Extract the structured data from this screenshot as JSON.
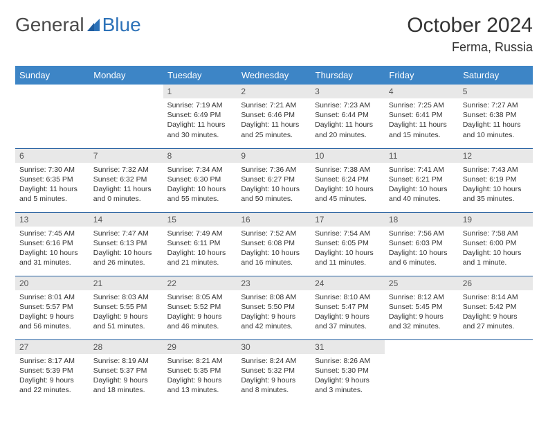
{
  "logo": {
    "part1": "General",
    "part2": "Blue"
  },
  "title": "October 2024",
  "location": "Ferma, Russia",
  "colors": {
    "header_bg": "#3d85c6",
    "header_text": "#ffffff",
    "daynum_bg": "#e8e8e8",
    "row_divider": "#1f5c9e",
    "logo_gray": "#555555",
    "logo_blue": "#2d72b8"
  },
  "weekdays": [
    "Sunday",
    "Monday",
    "Tuesday",
    "Wednesday",
    "Thursday",
    "Friday",
    "Saturday"
  ],
  "weeks": [
    [
      null,
      null,
      {
        "n": "1",
        "sunrise": "Sunrise: 7:19 AM",
        "sunset": "Sunset: 6:49 PM",
        "daylight": "Daylight: 11 hours and 30 minutes."
      },
      {
        "n": "2",
        "sunrise": "Sunrise: 7:21 AM",
        "sunset": "Sunset: 6:46 PM",
        "daylight": "Daylight: 11 hours and 25 minutes."
      },
      {
        "n": "3",
        "sunrise": "Sunrise: 7:23 AM",
        "sunset": "Sunset: 6:44 PM",
        "daylight": "Daylight: 11 hours and 20 minutes."
      },
      {
        "n": "4",
        "sunrise": "Sunrise: 7:25 AM",
        "sunset": "Sunset: 6:41 PM",
        "daylight": "Daylight: 11 hours and 15 minutes."
      },
      {
        "n": "5",
        "sunrise": "Sunrise: 7:27 AM",
        "sunset": "Sunset: 6:38 PM",
        "daylight": "Daylight: 11 hours and 10 minutes."
      }
    ],
    [
      {
        "n": "6",
        "sunrise": "Sunrise: 7:30 AM",
        "sunset": "Sunset: 6:35 PM",
        "daylight": "Daylight: 11 hours and 5 minutes."
      },
      {
        "n": "7",
        "sunrise": "Sunrise: 7:32 AM",
        "sunset": "Sunset: 6:32 PM",
        "daylight": "Daylight: 11 hours and 0 minutes."
      },
      {
        "n": "8",
        "sunrise": "Sunrise: 7:34 AM",
        "sunset": "Sunset: 6:30 PM",
        "daylight": "Daylight: 10 hours and 55 minutes."
      },
      {
        "n": "9",
        "sunrise": "Sunrise: 7:36 AM",
        "sunset": "Sunset: 6:27 PM",
        "daylight": "Daylight: 10 hours and 50 minutes."
      },
      {
        "n": "10",
        "sunrise": "Sunrise: 7:38 AM",
        "sunset": "Sunset: 6:24 PM",
        "daylight": "Daylight: 10 hours and 45 minutes."
      },
      {
        "n": "11",
        "sunrise": "Sunrise: 7:41 AM",
        "sunset": "Sunset: 6:21 PM",
        "daylight": "Daylight: 10 hours and 40 minutes."
      },
      {
        "n": "12",
        "sunrise": "Sunrise: 7:43 AM",
        "sunset": "Sunset: 6:19 PM",
        "daylight": "Daylight: 10 hours and 35 minutes."
      }
    ],
    [
      {
        "n": "13",
        "sunrise": "Sunrise: 7:45 AM",
        "sunset": "Sunset: 6:16 PM",
        "daylight": "Daylight: 10 hours and 31 minutes."
      },
      {
        "n": "14",
        "sunrise": "Sunrise: 7:47 AM",
        "sunset": "Sunset: 6:13 PM",
        "daylight": "Daylight: 10 hours and 26 minutes."
      },
      {
        "n": "15",
        "sunrise": "Sunrise: 7:49 AM",
        "sunset": "Sunset: 6:11 PM",
        "daylight": "Daylight: 10 hours and 21 minutes."
      },
      {
        "n": "16",
        "sunrise": "Sunrise: 7:52 AM",
        "sunset": "Sunset: 6:08 PM",
        "daylight": "Daylight: 10 hours and 16 minutes."
      },
      {
        "n": "17",
        "sunrise": "Sunrise: 7:54 AM",
        "sunset": "Sunset: 6:05 PM",
        "daylight": "Daylight: 10 hours and 11 minutes."
      },
      {
        "n": "18",
        "sunrise": "Sunrise: 7:56 AM",
        "sunset": "Sunset: 6:03 PM",
        "daylight": "Daylight: 10 hours and 6 minutes."
      },
      {
        "n": "19",
        "sunrise": "Sunrise: 7:58 AM",
        "sunset": "Sunset: 6:00 PM",
        "daylight": "Daylight: 10 hours and 1 minute."
      }
    ],
    [
      {
        "n": "20",
        "sunrise": "Sunrise: 8:01 AM",
        "sunset": "Sunset: 5:57 PM",
        "daylight": "Daylight: 9 hours and 56 minutes."
      },
      {
        "n": "21",
        "sunrise": "Sunrise: 8:03 AM",
        "sunset": "Sunset: 5:55 PM",
        "daylight": "Daylight: 9 hours and 51 minutes."
      },
      {
        "n": "22",
        "sunrise": "Sunrise: 8:05 AM",
        "sunset": "Sunset: 5:52 PM",
        "daylight": "Daylight: 9 hours and 46 minutes."
      },
      {
        "n": "23",
        "sunrise": "Sunrise: 8:08 AM",
        "sunset": "Sunset: 5:50 PM",
        "daylight": "Daylight: 9 hours and 42 minutes."
      },
      {
        "n": "24",
        "sunrise": "Sunrise: 8:10 AM",
        "sunset": "Sunset: 5:47 PM",
        "daylight": "Daylight: 9 hours and 37 minutes."
      },
      {
        "n": "25",
        "sunrise": "Sunrise: 8:12 AM",
        "sunset": "Sunset: 5:45 PM",
        "daylight": "Daylight: 9 hours and 32 minutes."
      },
      {
        "n": "26",
        "sunrise": "Sunrise: 8:14 AM",
        "sunset": "Sunset: 5:42 PM",
        "daylight": "Daylight: 9 hours and 27 minutes."
      }
    ],
    [
      {
        "n": "27",
        "sunrise": "Sunrise: 8:17 AM",
        "sunset": "Sunset: 5:39 PM",
        "daylight": "Daylight: 9 hours and 22 minutes."
      },
      {
        "n": "28",
        "sunrise": "Sunrise: 8:19 AM",
        "sunset": "Sunset: 5:37 PM",
        "daylight": "Daylight: 9 hours and 18 minutes."
      },
      {
        "n": "29",
        "sunrise": "Sunrise: 8:21 AM",
        "sunset": "Sunset: 5:35 PM",
        "daylight": "Daylight: 9 hours and 13 minutes."
      },
      {
        "n": "30",
        "sunrise": "Sunrise: 8:24 AM",
        "sunset": "Sunset: 5:32 PM",
        "daylight": "Daylight: 9 hours and 8 minutes."
      },
      {
        "n": "31",
        "sunrise": "Sunrise: 8:26 AM",
        "sunset": "Sunset: 5:30 PM",
        "daylight": "Daylight: 9 hours and 3 minutes."
      },
      null,
      null
    ]
  ]
}
